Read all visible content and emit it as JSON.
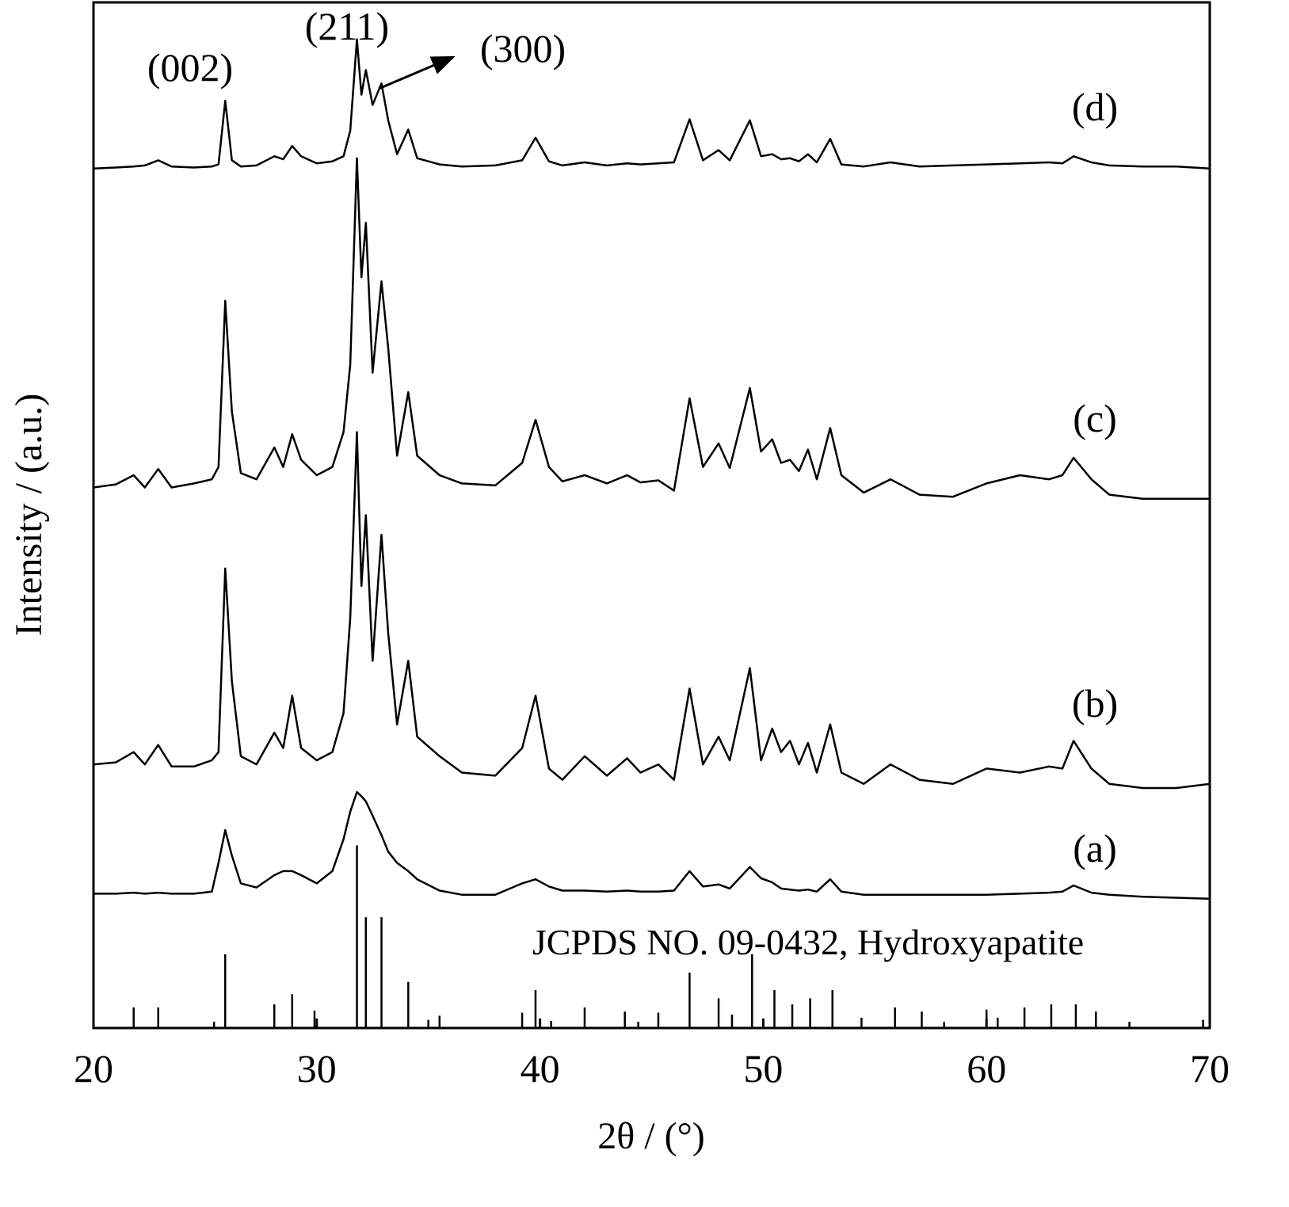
{
  "chart_data": {
    "type": "line",
    "xlabel": "2θ / (°)",
    "ylabel": "Intensity / (a.u.)",
    "xlim": [
      20,
      70
    ],
    "ylim": [
      0,
      100
    ],
    "xticks": [
      20,
      30,
      40,
      50,
      60,
      70
    ],
    "color": "#000000",
    "annotations": [
      "(002)",
      "(211)",
      "(300)"
    ],
    "x": [
      20,
      21,
      21.8,
      22.3,
      22.9,
      23.5,
      24.5,
      25.3,
      25.6,
      25.9,
      26.2,
      26.6,
      27.3,
      28.1,
      28.5,
      28.9,
      29.3,
      30,
      30.7,
      31.2,
      31.5,
      31.8,
      32.0,
      32.2,
      32.5,
      32.9,
      33.2,
      33.6,
      34.1,
      34.5,
      35.5,
      36.5,
      38,
      39.2,
      39.8,
      40.4,
      41,
      42,
      43,
      43.9,
      44.5,
      45.3,
      46.0,
      46.7,
      47.3,
      48.0,
      48.5,
      49.4,
      49.9,
      50.4,
      50.8,
      51.2,
      51.6,
      52.0,
      52.4,
      53.0,
      53.5,
      54.5,
      55.7,
      57,
      58.5,
      60,
      61.5,
      62.8,
      63.4,
      63.9,
      64.7,
      65.5,
      67,
      68.5,
      70
    ],
    "series": [
      {
        "name": "(a)",
        "values": [
          13.1,
          13.1,
          13.2,
          13.1,
          13.2,
          13.1,
          13.1,
          13.3,
          16.1,
          19.3,
          16.8,
          14.1,
          13.7,
          14.9,
          15.3,
          15.3,
          14.9,
          14.1,
          15.3,
          18.4,
          21.1,
          23.0,
          22.6,
          22.1,
          20.7,
          18.8,
          17.2,
          16.1,
          15.3,
          14.5,
          13.4,
          13.0,
          13.0,
          14.1,
          14.5,
          13.8,
          13.4,
          13.4,
          13.3,
          13.4,
          13.3,
          13.3,
          13.4,
          15.3,
          13.8,
          14.0,
          13.6,
          15.7,
          14.6,
          14.2,
          13.6,
          13.5,
          13.4,
          13.5,
          13.3,
          14.5,
          13.3,
          13.0,
          13.0,
          13.0,
          13.0,
          13.0,
          13.1,
          13.2,
          13.3,
          13.9,
          13.2,
          13.0,
          12.8,
          12.7,
          12.6
        ]
      },
      {
        "name": "(b)",
        "values": [
          25.7,
          25.9,
          26.9,
          25.7,
          27.6,
          25.5,
          25.5,
          26.1,
          26.9,
          44.8,
          33.8,
          26.5,
          25.7,
          28.8,
          27.3,
          32.4,
          27.3,
          26.1,
          26.9,
          30.7,
          40.0,
          58.1,
          43.1,
          50.0,
          35.8,
          48.1,
          38.5,
          29.6,
          35.8,
          28.4,
          26.5,
          24.9,
          24.6,
          27.3,
          32.4,
          25.3,
          24.2,
          26.5,
          24.6,
          26.3,
          24.9,
          25.7,
          24.2,
          33.1,
          25.7,
          28.4,
          26.1,
          35.1,
          26.1,
          29.2,
          26.9,
          28.0,
          25.7,
          27.8,
          24.9,
          29.6,
          24.9,
          23.8,
          25.7,
          24.2,
          23.8,
          25.3,
          24.9,
          25.5,
          25.3,
          28.0,
          25.3,
          23.8,
          23.4,
          23.4,
          23.8
        ]
      },
      {
        "name": "(c)",
        "values": [
          52.7,
          53.0,
          53.9,
          52.7,
          54.5,
          52.7,
          53.1,
          53.5,
          54.7,
          70.9,
          60.1,
          54.1,
          53.5,
          56.6,
          54.7,
          57.9,
          55.4,
          53.9,
          54.7,
          58.1,
          64.7,
          84.8,
          73.2,
          78.5,
          63.9,
          72.8,
          66.3,
          55.8,
          62.0,
          55.8,
          53.9,
          53.1,
          52.9,
          55.1,
          59.3,
          54.7,
          53.3,
          53.9,
          53.1,
          53.9,
          53.2,
          53.4,
          52.4,
          61.4,
          54.7,
          57.0,
          54.6,
          62.4,
          56.2,
          57.4,
          55.1,
          55.4,
          54.3,
          56.4,
          53.5,
          58.5,
          53.9,
          52.2,
          53.5,
          52.0,
          51.8,
          53.1,
          53.9,
          53.5,
          53.9,
          55.6,
          53.5,
          52.0,
          51.6,
          51.6,
          51.6
        ]
      },
      {
        "name": "(d)",
        "values": [
          83.8,
          83.9,
          84.0,
          84.1,
          84.6,
          84.0,
          83.9,
          84.0,
          84.2,
          90.4,
          84.6,
          84.0,
          84.1,
          85.0,
          84.7,
          86.0,
          85.0,
          84.3,
          84.5,
          85.0,
          87.5,
          96.4,
          91.0,
          93.4,
          90.0,
          92.1,
          88.5,
          85.2,
          87.6,
          84.8,
          84.2,
          84.0,
          84.1,
          84.6,
          86.8,
          84.5,
          84.1,
          84.4,
          84.1,
          84.3,
          84.2,
          84.3,
          84.4,
          88.6,
          84.6,
          85.6,
          84.6,
          88.5,
          85.0,
          85.2,
          84.7,
          84.8,
          84.5,
          85.2,
          84.4,
          86.7,
          84.2,
          84.0,
          84.4,
          84.0,
          84.1,
          84.2,
          84.3,
          84.4,
          84.3,
          85.0,
          84.4,
          84.1,
          84.0,
          84.0,
          83.8
        ]
      }
    ],
    "reference": {
      "name": "JCPDS NO. 09-0432, Hydroxyapatite",
      "positions": [
        21.8,
        22.9,
        25.4,
        25.9,
        28.1,
        28.9,
        29.9,
        31.8,
        32.2,
        32.9,
        34.1,
        35.0,
        35.5,
        39.2,
        39.8,
        40.5,
        42.0,
        43.8,
        44.4,
        45.3,
        46.7,
        48.0,
        48.6,
        49.5,
        50.5,
        51.3,
        52.1,
        53.1,
        54.4,
        55.9,
        57.1,
        58.1,
        60.0,
        60.5,
        61.7,
        62.9,
        64.0,
        64.9,
        66.4,
        69.7
      ],
      "values": [
        2.0,
        2.0,
        0.6,
        7.2,
        2.3,
        3.3,
        1.7,
        17.8,
        10.8,
        10.8,
        4.5,
        0.8,
        1.2,
        1.5,
        3.7,
        0.7,
        2.0,
        1.6,
        0.6,
        1.5,
        5.4,
        2.9,
        1.3,
        7.2,
        3.7,
        2.3,
        2.9,
        3.7,
        1.0,
        2.0,
        1.6,
        0.6,
        1.8,
        1.0,
        2.0,
        2.3,
        2.3,
        1.6,
        0.6,
        0.8
      ]
    }
  }
}
